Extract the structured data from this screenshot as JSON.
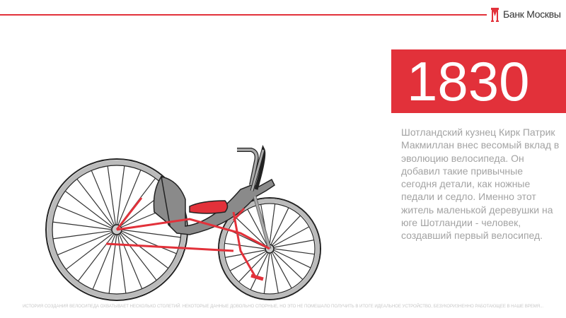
{
  "header": {
    "brand": "Банк Москвы",
    "brand_color": "#e2313a",
    "logo_icon": "bank-of-moscow-m-logo"
  },
  "hero": {
    "year": "1830",
    "description": "Шотландский кузнец Кирк Патрик Макмиллан внес весомый вклад в эволюцию велосипеда. Он добавил такие привычные сегодня детали, как ножные педали и седло. Именно этот житель маленькой деревушки на юге Шотландии - человек, создавший первый велосипед."
  },
  "illustration": {
    "subject": "macmillan-bicycle-illustration",
    "frame_color": "#8a8a8a",
    "accent_color": "#e2313a"
  },
  "footer": {
    "text": "ИСТОРИЯ СОЗДАНИЯ ВЕЛОСИПЕДА ОХВАТЫВАЕТ НЕСКОЛЬКО СТОЛЕТИЙ. НЕКОТОРЫЕ ДАННЫЕ ДОВОЛЬНО СПОРНЫЕ, НО ЭТО НЕ ПОМЕШАЛО ПОЛУЧИТЬ В ИТОГЕ ИДЕАЛЬНОЕ УСТРОЙСТВО, БЕЗУКОРИЗНЕННО РАБОТАЮЩЕЕ В НАШЕ ВРЕМЯ..."
  }
}
